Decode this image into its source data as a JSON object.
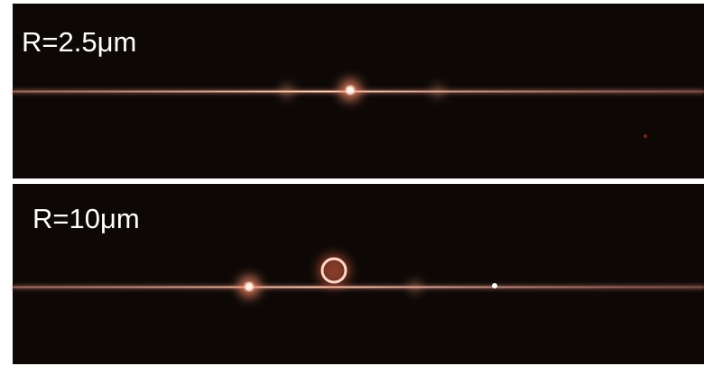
{
  "panels": [
    {
      "label": "R=2.5μm"
    },
    {
      "label": "R=10μm"
    }
  ]
}
